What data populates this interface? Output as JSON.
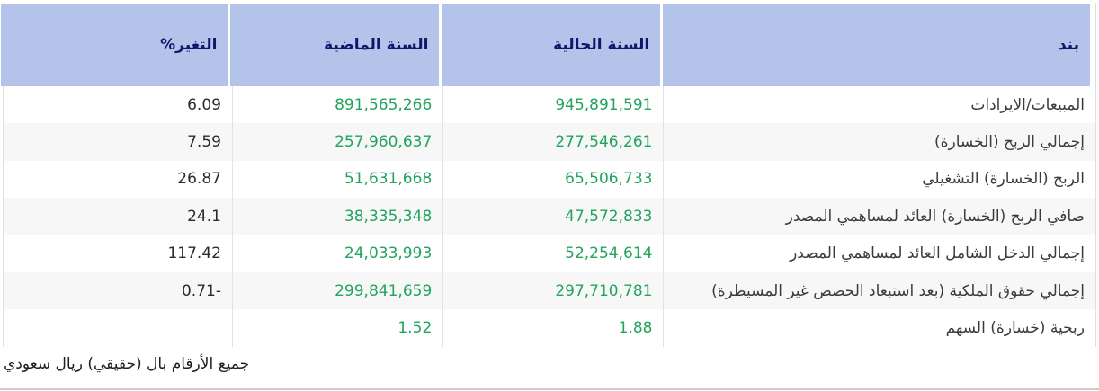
{
  "table": {
    "headers": [
      {
        "key": "item",
        "label": "بند"
      },
      {
        "key": "current",
        "label": "السنة الحالية"
      },
      {
        "key": "previous",
        "label": "السنة الماضية"
      },
      {
        "key": "change",
        "label": "التغير%"
      }
    ],
    "rows": [
      {
        "item": "المبيعات/الايرادات",
        "current": "945,891,591",
        "previous": "891,565,266",
        "change": "6.09"
      },
      {
        "item": "إجمالي الربح (الخسارة)",
        "current": "277,546,261",
        "previous": "257,960,637",
        "change": "7.59"
      },
      {
        "item": "الربح (الخسارة) التشغيلي",
        "current": "65,506,733",
        "previous": "51,631,668",
        "change": "26.87"
      },
      {
        "item": "صافي الربح (الخسارة) العائد لمساهمي المصدر",
        "current": "47,572,833",
        "previous": "38,335,348",
        "change": "24.1"
      },
      {
        "item": "إجمالي الدخل الشامل العائد لمساهمي المصدر",
        "current": "52,254,614",
        "previous": "24,033,993",
        "change": "117.42"
      },
      {
        "item": "إجمالي حقوق الملكية (بعد استبعاد الحصص غير المسيطرة)",
        "current": "297,710,781",
        "previous": "299,841,659",
        "change": "-0.71"
      },
      {
        "item": "ربحية (خسارة) السهم",
        "current": "1.88",
        "previous": "1.52",
        "change": ""
      }
    ],
    "footnote": "جميع الأرقام بال (حقيقي) ريال سعودي"
  },
  "colors": {
    "header_bg": "#b3c3e9",
    "header_text": "#14146b",
    "value_green": "#21a45c",
    "row_alt_bg": "#f7f7f7",
    "column_border": "#e3e3e3",
    "item_text": "#3b3b3b",
    "change_text": "#2b2b2b",
    "bottom_rule": "#cbcbcb"
  }
}
